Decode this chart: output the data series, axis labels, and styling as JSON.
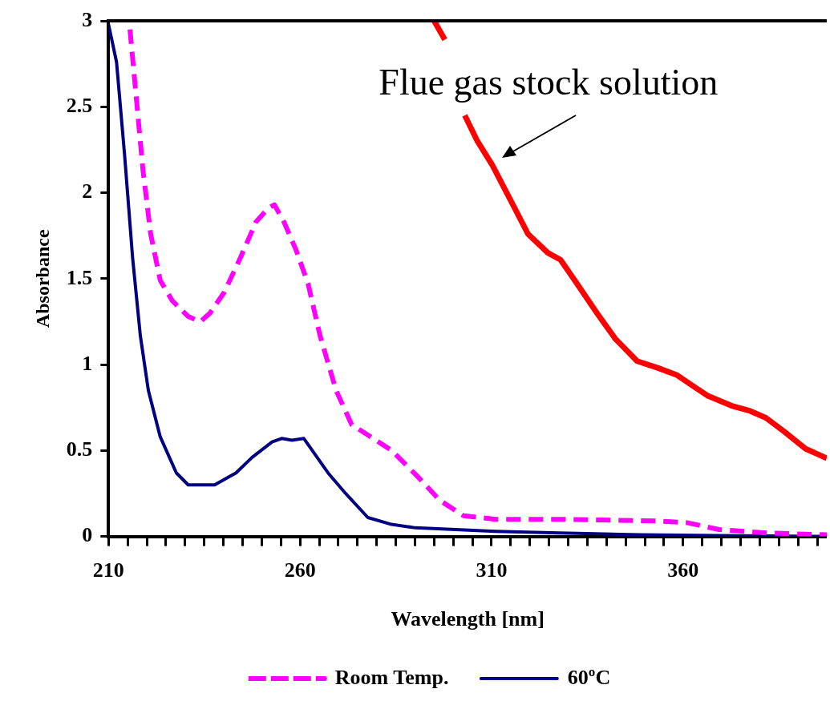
{
  "chart_data": {
    "type": "line",
    "xlabel": "Wavelength [nm]",
    "ylabel": "Absorbance",
    "xlim": [
      210,
      397.5
    ],
    "ylim": [
      0,
      3
    ],
    "xticks": [
      210,
      {
        "value": 215,
        "label": null
      },
      {
        "value": 220,
        "label": null
      },
      {
        "value": 225,
        "label": null
      },
      {
        "value": 230,
        "label": null
      },
      {
        "value": 235,
        "label": null
      },
      {
        "value": 240,
        "label": null
      },
      {
        "value": 245,
        "label": null
      },
      {
        "value": 250,
        "label": null
      },
      {
        "value": 255,
        "label": null
      },
      260,
      {
        "value": 265,
        "label": null
      },
      {
        "value": 270,
        "label": null
      },
      {
        "value": 275,
        "label": null
      },
      {
        "value": 280,
        "label": null
      },
      {
        "value": 285,
        "label": null
      },
      {
        "value": 290,
        "label": null
      },
      {
        "value": 295,
        "label": null
      },
      {
        "value": 300,
        "label": null
      },
      {
        "value": 305,
        "label": null
      },
      310,
      {
        "value": 315,
        "label": null
      },
      {
        "value": 320,
        "label": null
      },
      {
        "value": 325,
        "label": null
      },
      {
        "value": 330,
        "label": null
      },
      {
        "value": 335,
        "label": null
      },
      {
        "value": 340,
        "label": null
      },
      {
        "value": 345,
        "label": null
      },
      {
        "value": 350,
        "label": null
      },
      {
        "value": 355,
        "label": null
      },
      360,
      {
        "value": 365,
        "label": null
      },
      {
        "value": 370,
        "label": null
      },
      {
        "value": 375,
        "label": null
      },
      {
        "value": 380,
        "label": null
      },
      {
        "value": 385,
        "label": null
      },
      {
        "value": 390,
        "label": null
      },
      {
        "value": 395,
        "label": null
      }
    ],
    "yticks": [
      0,
      0.5,
      1,
      1.5,
      2,
      2.5,
      3
    ],
    "legend": "bottom",
    "marker": "none",
    "annotations": [
      "Flue gas stock solution"
    ],
    "series": [
      {
        "name": "Room Temp.",
        "color": "#ff00ff",
        "line_style": "dashed",
        "x": [
          215.6,
          217.3,
          219,
          221,
          223.5,
          226.7,
          230.8,
          234,
          236.5,
          240.2,
          244.4,
          248.5,
          251.7,
          253.3,
          255.8,
          258.9,
          262.1,
          265.2,
          269.4,
          273.5,
          277.7,
          283.9,
          290.2,
          296.5,
          302.7,
          311,
          327.7,
          352.7,
          361,
          369.4,
          381.9,
          397.5
        ],
        "values": [
          2.95,
          2.54,
          2.13,
          1.76,
          1.49,
          1.37,
          1.28,
          1.25,
          1.3,
          1.42,
          1.62,
          1.83,
          1.91,
          1.93,
          1.83,
          1.67,
          1.47,
          1.17,
          0.85,
          0.65,
          0.59,
          0.5,
          0.36,
          0.21,
          0.12,
          0.1,
          0.1,
          0.09,
          0.08,
          0.04,
          0.02,
          0.01
        ]
      },
      {
        "name": "60ºC",
        "color": "#000080",
        "line_style": "solid",
        "x": [
          210,
          212.1,
          214.2,
          216.3,
          218.3,
          220.4,
          223.5,
          227.7,
          230.8,
          237.7,
          243.3,
          247.5,
          252.7,
          255.2,
          257.9,
          261,
          267.3,
          271.9,
          277.7,
          283.9,
          290.2,
          300.6,
          311,
          327.7,
          348.5,
          369.4,
          397.5
        ],
        "values": [
          2.98,
          2.76,
          2.22,
          1.62,
          1.17,
          0.85,
          0.58,
          0.37,
          0.3,
          0.3,
          0.37,
          0.46,
          0.55,
          0.57,
          0.56,
          0.57,
          0.37,
          0.25,
          0.11,
          0.07,
          0.05,
          0.04,
          0.03,
          0.02,
          0.01,
          0.005,
          0
        ]
      },
      {
        "color": "#ff0000",
        "line_style": "solid",
        "x": [
          295,
          297.8,
          300,
          303,
          306.3,
          310.2,
          315.8,
          319.5,
          324.7,
          328,
          332,
          337.5,
          342.3,
          348,
          353.5,
          358.3,
          362.3,
          366.3,
          372.7,
          377.5,
          381.6,
          386.4,
          392,
          397.5
        ],
        "values": [
          3,
          2.89,
          null,
          2.45,
          2.3,
          2.16,
          1.92,
          1.76,
          1.65,
          1.61,
          1.48,
          1.3,
          1.15,
          1.02,
          0.98,
          0.94,
          0.88,
          0.82,
          0.76,
          0.73,
          0.69,
          0.61,
          0.51,
          0.455
        ]
      }
    ]
  }
}
